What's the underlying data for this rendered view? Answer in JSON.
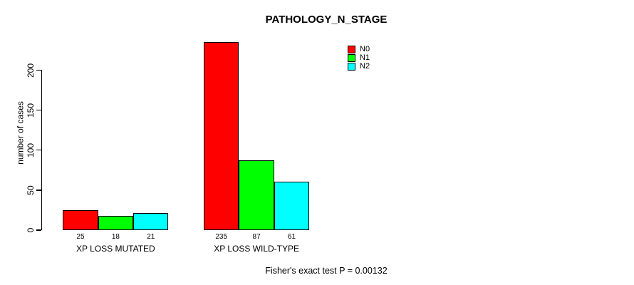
{
  "chart_data": {
    "type": "bar",
    "title": "PATHOLOGY_N_STAGE",
    "xlabel": "",
    "ylabel": "number of cases",
    "ylim": [
      0,
      200
    ],
    "yticks": [
      0,
      50,
      100,
      150,
      200
    ],
    "grid": false,
    "legend_position": "top-right",
    "categories": [
      "XP LOSS MUTATED",
      "XP LOSS WILD-TYPE"
    ],
    "series": [
      {
        "name": "N0",
        "color": "#ff0000",
        "values": [
          25,
          235
        ]
      },
      {
        "name": "N1",
        "color": "#00ff00",
        "values": [
          18,
          87
        ]
      },
      {
        "name": "N2",
        "color": "#00ffff",
        "values": [
          21,
          61
        ]
      }
    ],
    "bar_border_color": "#000000"
  },
  "footer": {
    "note": "Fisher's exact test P = 0.00132"
  }
}
